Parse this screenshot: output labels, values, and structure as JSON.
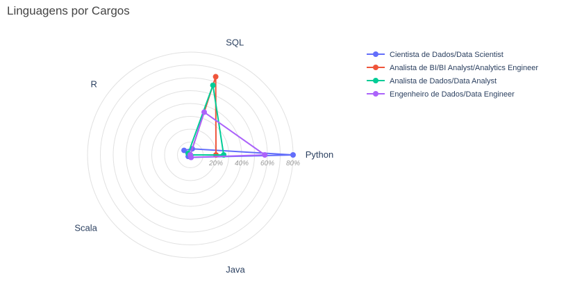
{
  "chart_data": {
    "type": "radar",
    "title": "Linguagens por Cargos",
    "axes": [
      "Python",
      "SQL",
      "R",
      "Scala",
      "Java"
    ],
    "radial_range": [
      0,
      80
    ],
    "radial_ticks": [
      20,
      40,
      60,
      80
    ],
    "radial_tick_labels": [
      "20%",
      "40%",
      "60%",
      "80%"
    ],
    "grid": true,
    "legend_placement": "top-right",
    "series": [
      {
        "name": "Cientista de Dados/Data Scientist",
        "color": "#636efa",
        "values": [
          80,
          5,
          6,
          2,
          2
        ]
      },
      {
        "name": "Analista de BI/BI Analyst/Analytics Engineer",
        "color": "#ef553b",
        "values": [
          20,
          64,
          0,
          0,
          0
        ]
      },
      {
        "name": "Analista de Dados/Data Analyst",
        "color": "#00cc96",
        "values": [
          26,
          57,
          2,
          0,
          0
        ]
      },
      {
        "name": "Engenheiro de Dados/Data Engineer",
        "color": "#ab63fa",
        "values": [
          58,
          35,
          0,
          0,
          2
        ]
      }
    ]
  }
}
